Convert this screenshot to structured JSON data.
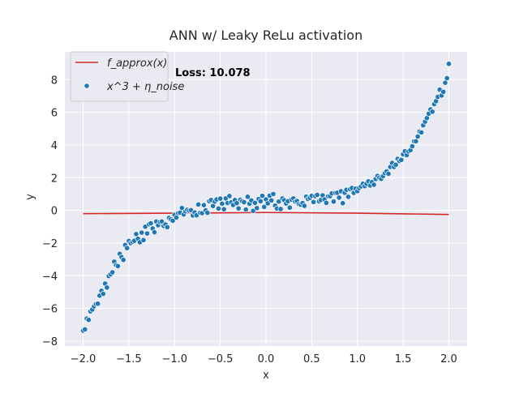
{
  "chart_data": {
    "type": "scatter",
    "title": "ANN w/ Leaky ReLu activation",
    "xlabel": "x",
    "ylabel": "y",
    "xlim": [
      -2.2,
      2.2
    ],
    "ylim": [
      -8.3,
      9.7
    ],
    "xticks": [
      "−2.0",
      "−1.5",
      "−1.0",
      "−0.5",
      "0.0",
      "0.5",
      "1.0",
      "1.5",
      "2.0"
    ],
    "xtick_values": [
      -2.0,
      -1.5,
      -1.0,
      -0.5,
      0.0,
      0.5,
      1.0,
      1.5,
      2.0
    ],
    "yticks": [
      "−8",
      "−6",
      "−4",
      "−2",
      "0",
      "2",
      "4",
      "6",
      "8"
    ],
    "ytick_values": [
      -8,
      -6,
      -4,
      -2,
      0,
      2,
      4,
      6,
      8
    ],
    "grid": true,
    "background": "#eaeaf2",
    "legend_placement": "top-left",
    "annotation": "Loss: 10.078",
    "series": [
      {
        "kind": "line",
        "legend_label": "f_approx(x)",
        "color": "#d62728",
        "x": [
          -2.0,
          -1.0,
          0.0,
          1.0,
          2.0
        ],
        "y": [
          -0.2,
          -0.17,
          -0.13,
          -0.17,
          -0.25
        ]
      },
      {
        "kind": "scatter",
        "legend_label": "x^3 + η_noise",
        "color": "#1f77b4",
        "x": [
          -2.0,
          -1.98,
          -1.96,
          -1.94,
          -1.92,
          -1.9,
          -1.88,
          -1.86,
          -1.84,
          -1.82,
          -1.8,
          -1.78,
          -1.76,
          -1.74,
          -1.72,
          -1.7,
          -1.68,
          -1.66,
          -1.64,
          -1.62,
          -1.6,
          -1.58,
          -1.56,
          -1.54,
          -1.52,
          -1.5,
          -1.48,
          -1.46,
          -1.44,
          -1.42,
          -1.4,
          -1.38,
          -1.36,
          -1.34,
          -1.32,
          -1.3,
          -1.28,
          -1.26,
          -1.24,
          -1.22,
          -1.2,
          -1.18,
          -1.16,
          -1.14,
          -1.12,
          -1.1,
          -1.08,
          -1.06,
          -1.04,
          -1.02,
          -1.0,
          -0.98,
          -0.96,
          -0.94,
          -0.92,
          -0.9,
          -0.88,
          -0.86,
          -0.84,
          -0.82,
          -0.8,
          -0.78,
          -0.76,
          -0.74,
          -0.72,
          -0.7,
          -0.68,
          -0.66,
          -0.64,
          -0.62,
          -0.6,
          -0.58,
          -0.56,
          -0.54,
          -0.52,
          -0.5,
          -0.48,
          -0.46,
          -0.44,
          -0.42,
          -0.4,
          -0.38,
          -0.36,
          -0.34,
          -0.32,
          -0.3,
          -0.28,
          -0.26,
          -0.24,
          -0.22,
          -0.2,
          -0.18,
          -0.16,
          -0.14,
          -0.12,
          -0.1,
          -0.08,
          -0.06,
          -0.04,
          -0.02,
          0.0,
          0.02,
          0.04,
          0.06,
          0.08,
          0.1,
          0.12,
          0.14,
          0.16,
          0.18,
          0.2,
          0.22,
          0.24,
          0.26,
          0.28,
          0.3,
          0.32,
          0.34,
          0.36,
          0.38,
          0.4,
          0.42,
          0.44,
          0.46,
          0.48,
          0.5,
          0.52,
          0.54,
          0.56,
          0.58,
          0.6,
          0.62,
          0.64,
          0.66,
          0.68,
          0.7,
          0.72,
          0.74,
          0.76,
          0.78,
          0.8,
          0.82,
          0.84,
          0.86,
          0.88,
          0.9,
          0.92,
          0.94,
          0.96,
          0.98,
          1.0,
          1.02,
          1.04,
          1.06,
          1.08,
          1.1,
          1.12,
          1.14,
          1.16,
          1.18,
          1.2,
          1.22,
          1.24,
          1.26,
          1.28,
          1.3,
          1.32,
          1.34,
          1.36,
          1.38,
          1.4,
          1.42,
          1.44,
          1.46,
          1.48,
          1.5,
          1.52,
          1.54,
          1.56,
          1.58,
          1.6,
          1.62,
          1.64,
          1.66,
          1.68,
          1.7,
          1.72,
          1.74,
          1.76,
          1.78,
          1.8,
          1.82,
          1.84,
          1.86,
          1.88,
          1.9,
          1.92,
          1.94,
          1.96,
          1.98,
          2.0
        ],
        "y": [
          -7.36,
          -7.28,
          -6.62,
          -6.7,
          -6.18,
          -6.07,
          -5.87,
          -5.73,
          -5.71,
          -5.22,
          -4.92,
          -5.11,
          -4.48,
          -4.72,
          -4.02,
          -3.92,
          -3.79,
          -3.14,
          -3.35,
          -3.41,
          -2.66,
          -2.86,
          -3.03,
          -2.12,
          -2.31,
          -1.87,
          -2.01,
          -1.92,
          -1.86,
          -1.45,
          -1.74,
          -1.95,
          -1.36,
          -1.82,
          -1.0,
          -1.41,
          -0.85,
          -0.79,
          -1.11,
          -1.34,
          -0.68,
          -0.91,
          -0.71,
          -0.68,
          -0.95,
          -0.86,
          -1.03,
          -0.46,
          -0.55,
          -0.63,
          -0.28,
          -0.44,
          -0.17,
          -0.14,
          0.15,
          -0.25,
          -0.06,
          0.04,
          -0.02,
          0.01,
          -0.31,
          -0.13,
          -0.3,
          0.36,
          -0.15,
          -0.17,
          0.32,
          0.0,
          -0.15,
          0.56,
          0.63,
          0.27,
          0.54,
          0.67,
          0.11,
          0.72,
          0.41,
          0.07,
          0.73,
          0.45,
          0.88,
          0.49,
          0.33,
          0.63,
          0.44,
          0.12,
          0.65,
          0.56,
          0.5,
          0.05,
          0.83,
          0.41,
          0.61,
          -0.03,
          0.46,
          0.14,
          0.69,
          0.56,
          0.89,
          0.21,
          0.67,
          0.43,
          0.9,
          0.61,
          1.0,
          0.29,
          0.11,
          0.54,
          0.08,
          0.73,
          0.62,
          0.42,
          0.56,
          0.17,
          0.66,
          0.73,
          0.54,
          0.57,
          0.38,
          0.35,
          0.45,
          0.28,
          0.84,
          0.7,
          0.77,
          0.89,
          0.51,
          0.87,
          0.95,
          0.55,
          0.63,
          0.92,
          0.67,
          0.46,
          0.86,
          0.87,
          1.04,
          0.54,
          1.07,
          1.08,
          0.78,
          1.17,
          0.44,
          1.08,
          1.26,
          0.83,
          1.3,
          1.37,
          1.07,
          1.33,
          1.18,
          1.37,
          1.47,
          1.63,
          1.48,
          1.62,
          1.78,
          1.52,
          1.73,
          1.57,
          1.92,
          2.11,
          2.0,
          1.93,
          2.1,
          2.28,
          2.39,
          2.24,
          2.66,
          2.9,
          2.66,
          2.79,
          3.15,
          3.02,
          3.09,
          3.43,
          3.62,
          3.38,
          3.61,
          3.68,
          3.92,
          4.23,
          4.23,
          4.52,
          4.82,
          4.77,
          5.21,
          5.43,
          5.65,
          5.92,
          6.18,
          6.04,
          6.5,
          6.68,
          6.95,
          7.39,
          7.03,
          7.25,
          7.81,
          8.09,
          8.97
        ]
      }
    ]
  }
}
